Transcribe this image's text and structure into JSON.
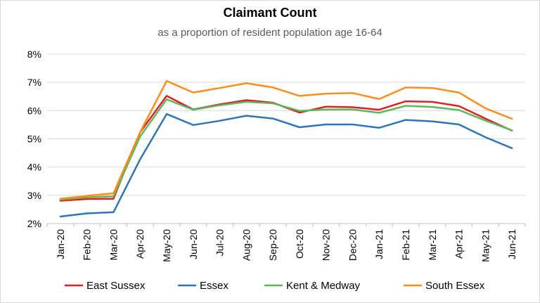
{
  "chart_data": {
    "type": "line",
    "title": "Claimant Count",
    "subtitle": "as a proportion of resident population age 16-64",
    "xlabel": "",
    "ylabel": "",
    "ylim": [
      0.02,
      0.08
    ],
    "y_ticks": [
      "2%",
      "3%",
      "4%",
      "5%",
      "6%",
      "7%",
      "8%"
    ],
    "y_tick_values": [
      0.02,
      0.03,
      0.04,
      0.05,
      0.06,
      0.07,
      0.08
    ],
    "grid": true,
    "legend_position": "bottom",
    "categories": [
      "Jan-20",
      "Feb-20",
      "Mar-20",
      "Apr-20",
      "May-20",
      "Jun-20",
      "Jul-20",
      "Aug-20",
      "Sep-20",
      "Oct-20",
      "Nov-20",
      "Dec-20",
      "Jan-21",
      "Feb-21",
      "Mar-21",
      "Apr-21",
      "May-21",
      "Jun-21"
    ],
    "series": [
      {
        "name": "East Sussex",
        "color": "#e02020",
        "values": [
          0.0281,
          0.0287,
          0.0288,
          0.0523,
          0.0652,
          0.0604,
          0.0622,
          0.0637,
          0.0628,
          0.0593,
          0.0614,
          0.0612,
          0.0603,
          0.0633,
          0.0631,
          0.0616,
          0.0572,
          0.0529
        ]
      },
      {
        "name": "Essex",
        "color": "#2e75b6",
        "values": [
          0.0225,
          0.0236,
          0.024,
          0.0427,
          0.0588,
          0.0549,
          0.0564,
          0.0582,
          0.0572,
          0.0541,
          0.0551,
          0.0551,
          0.0539,
          0.0567,
          0.0562,
          0.0551,
          0.0506,
          0.0467
        ]
      },
      {
        "name": "Kent & Medway",
        "color": "#5cb85c",
        "values": [
          0.0285,
          0.0293,
          0.0296,
          0.0508,
          0.064,
          0.0603,
          0.0619,
          0.0631,
          0.0626,
          0.0599,
          0.0604,
          0.0604,
          0.0592,
          0.0617,
          0.0613,
          0.0602,
          0.0565,
          0.053
        ]
      },
      {
        "name": "South Essex",
        "color": "#ff8c1a",
        "values": [
          0.0288,
          0.0298,
          0.0307,
          0.0523,
          0.0705,
          0.0664,
          0.068,
          0.0697,
          0.0682,
          0.0652,
          0.066,
          0.0662,
          0.0641,
          0.0682,
          0.068,
          0.0664,
          0.0608,
          0.0571
        ]
      }
    ]
  }
}
